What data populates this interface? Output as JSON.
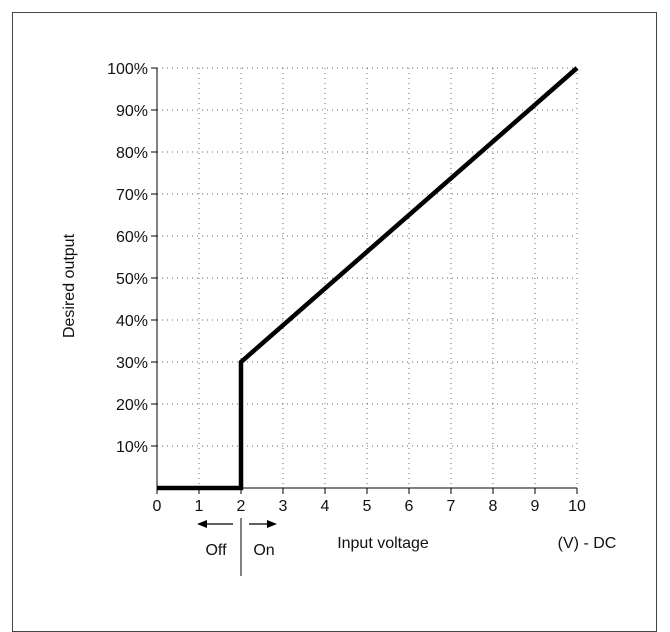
{
  "chart_data": {
    "type": "line",
    "title": "",
    "xlabel": "Input voltage",
    "xunit_label": "(V) - DC",
    "ylabel": "Desired output",
    "xlim": [
      0,
      10
    ],
    "ylim": [
      0,
      100
    ],
    "x_ticks": [
      "0",
      "1",
      "2",
      "3",
      "4",
      "5",
      "6",
      "7",
      "8",
      "9",
      "10"
    ],
    "y_ticks": [
      "10%",
      "20%",
      "30%",
      "40%",
      "50%",
      "60%",
      "70%",
      "80%",
      "90%",
      "100%"
    ],
    "grid": true,
    "grid_style": "dotted",
    "series": [
      {
        "x": [
          0,
          2,
          2,
          2,
          10
        ],
        "y": [
          0,
          0,
          0,
          30,
          100
        ],
        "color": "#000000"
      }
    ],
    "annotations": {
      "off_label": "Off",
      "on_label": "On",
      "threshold_x": 2
    }
  }
}
